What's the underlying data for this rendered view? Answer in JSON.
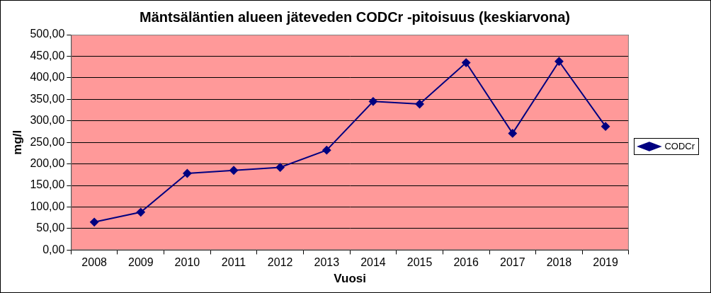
{
  "chart_data": {
    "type": "line",
    "title": "Mäntsäläntien alueen jäteveden CODCr -pitoisuus (keskiarvona)",
    "x_label": "Vuosi",
    "y_label": "mg/l",
    "categories": [
      "2008",
      "2009",
      "2010",
      "2011",
      "2012",
      "2013",
      "2014",
      "2015",
      "2016",
      "2017",
      "2018",
      "2019"
    ],
    "series": [
      {
        "name": "CODCr",
        "color": "#000080",
        "marker": "diamond",
        "line_style": "solid",
        "values": [
          65,
          88,
          178,
          185,
          192,
          232,
          345,
          339,
          435,
          271,
          438,
          287
        ]
      }
    ],
    "ylim": [
      0,
      500
    ],
    "yticks": [
      {
        "value": 0,
        "label": "0,00"
      },
      {
        "value": 50,
        "label": "50,00"
      },
      {
        "value": 100,
        "label": "100,00"
      },
      {
        "value": 150,
        "label": "150,00"
      },
      {
        "value": 200,
        "label": "200,00"
      },
      {
        "value": 250,
        "label": "250,00"
      },
      {
        "value": 300,
        "label": "300,00"
      },
      {
        "value": 350,
        "label": "350,00"
      },
      {
        "value": 400,
        "label": "400,00"
      },
      {
        "value": 450,
        "label": "450,00"
      },
      {
        "value": 500,
        "label": "500,00"
      }
    ],
    "grid": true,
    "legend": "right"
  }
}
